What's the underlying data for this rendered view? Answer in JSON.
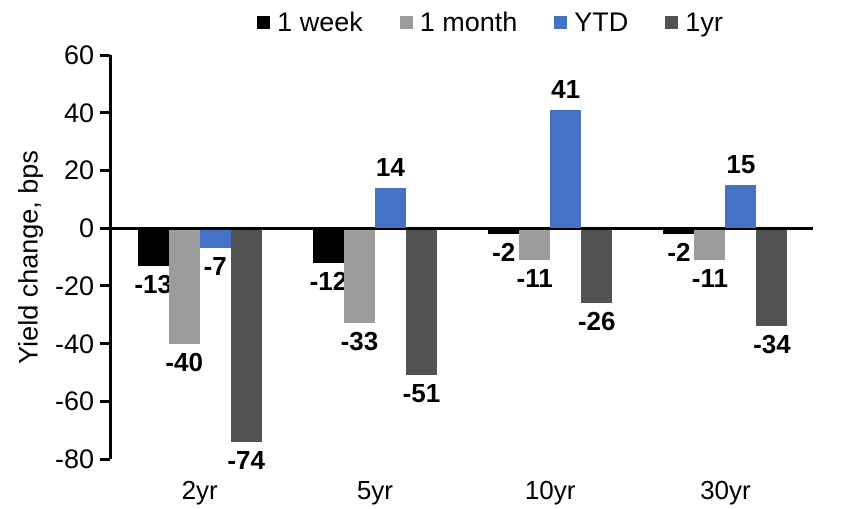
{
  "chart_data": {
    "type": "bar",
    "title": "",
    "xlabel": "",
    "ylabel": "Yield change, bps",
    "categories": [
      "2yr",
      "5yr",
      "10yr",
      "30yr"
    ],
    "series": [
      {
        "name": "1 week",
        "color": "#000000",
        "values": [
          -13,
          -12,
          -2,
          -2
        ]
      },
      {
        "name": "1 month",
        "color": "#9C9C9C",
        "values": [
          -40,
          -33,
          -11,
          -11
        ]
      },
      {
        "name": "YTD",
        "color": "#4472C4",
        "values": [
          -7,
          14,
          41,
          15
        ]
      },
      {
        "name": "1yr",
        "color": "#525252",
        "values": [
          -74,
          -51,
          -26,
          -34
        ]
      }
    ],
    "ylim": [
      -80,
      60
    ],
    "yticks": [
      60,
      40,
      20,
      0,
      -20,
      -40,
      -60,
      -80
    ],
    "grid": false,
    "legend_position": "top",
    "data_labels": true,
    "axis_color": "#000000",
    "background_color": "#ffffff"
  }
}
